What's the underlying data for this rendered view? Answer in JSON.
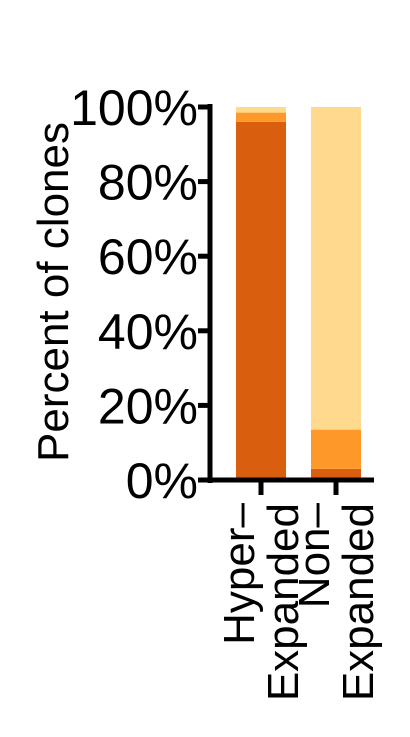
{
  "chart_data": {
    "type": "bar",
    "stacked": true,
    "ylabel": "Percent of clones",
    "xlabel": "",
    "ylim": [
      0,
      100
    ],
    "yticks": [
      "0%",
      "20%",
      "40%",
      "60%",
      "80%",
      "100%"
    ],
    "ytick_values": [
      0,
      20,
      40,
      60,
      80,
      100
    ],
    "categories": [
      [
        "Hyper–",
        "Expanded"
      ],
      [
        "Non–",
        "Expanded"
      ]
    ],
    "series": [
      {
        "color": "#D95F0E",
        "values": [
          96,
          3
        ]
      },
      {
        "color": "#FE9929",
        "values": [
          2.5,
          10.5
        ]
      },
      {
        "color": "#FED98E",
        "values": [
          1.5,
          86.5
        ]
      }
    ],
    "legend": "none",
    "grid": false
  }
}
